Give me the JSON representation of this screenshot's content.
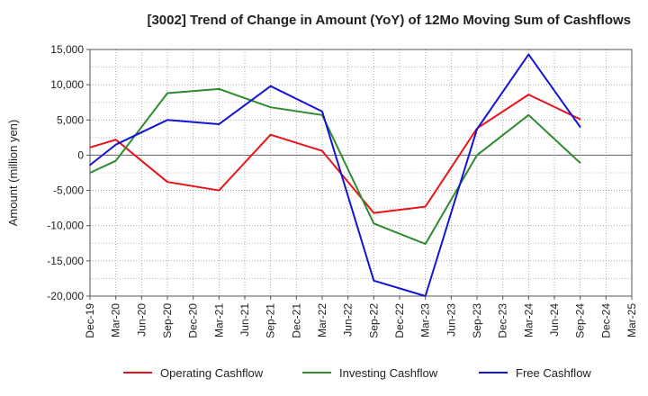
{
  "chart_data": {
    "type": "line",
    "title": "[3002]  Trend of Change in Amount (YoY) of 12Mo Moving Sum of Cashflows",
    "xlabel": "",
    "ylabel": "Amount (million yen)",
    "ylim": [
      -20000,
      15000
    ],
    "yticks": [
      15000,
      10000,
      5000,
      0,
      -5000,
      -10000,
      -15000,
      -20000
    ],
    "ytick_labels": [
      "15,000",
      "10,000",
      "5,000",
      "0",
      "-5,000",
      "-10,000",
      "-15,000",
      "-20,000"
    ],
    "categories": [
      "Dec-19",
      "Mar-20",
      "Jun-20",
      "Sep-20",
      "Dec-20",
      "Mar-21",
      "Jun-21",
      "Sep-21",
      "Dec-21",
      "Mar-22",
      "Jun-22",
      "Sep-22",
      "Dec-22",
      "Mar-23",
      "Jun-23",
      "Sep-23",
      "Dec-23",
      "Mar-24",
      "Jun-24",
      "Sep-24",
      "Dec-24",
      "Mar-25"
    ],
    "grid": true,
    "legend_position": "bottom",
    "series": [
      {
        "name": "Operating Cashflow",
        "color": "#e8141a",
        "values": [
          1100,
          2200,
          null,
          -3800,
          null,
          -5000,
          null,
          2900,
          null,
          600,
          null,
          -8200,
          null,
          -7300,
          null,
          3800,
          null,
          8600,
          null,
          5100,
          null,
          null
        ]
      },
      {
        "name": "Investing Cashflow",
        "color": "#2e8b2e",
        "values": [
          -2500,
          -800,
          null,
          8800,
          null,
          9400,
          null,
          6800,
          null,
          5700,
          null,
          -9700,
          null,
          -12600,
          null,
          0,
          null,
          5700,
          null,
          -1100,
          null,
          null
        ]
      },
      {
        "name": "Free Cashflow",
        "color": "#1414d2",
        "values": [
          -1400,
          1500,
          null,
          5000,
          null,
          4400,
          null,
          9800,
          null,
          6200,
          null,
          -17800,
          null,
          -20000,
          null,
          3700,
          null,
          14300,
          null,
          4000,
          null,
          null
        ]
      }
    ]
  }
}
